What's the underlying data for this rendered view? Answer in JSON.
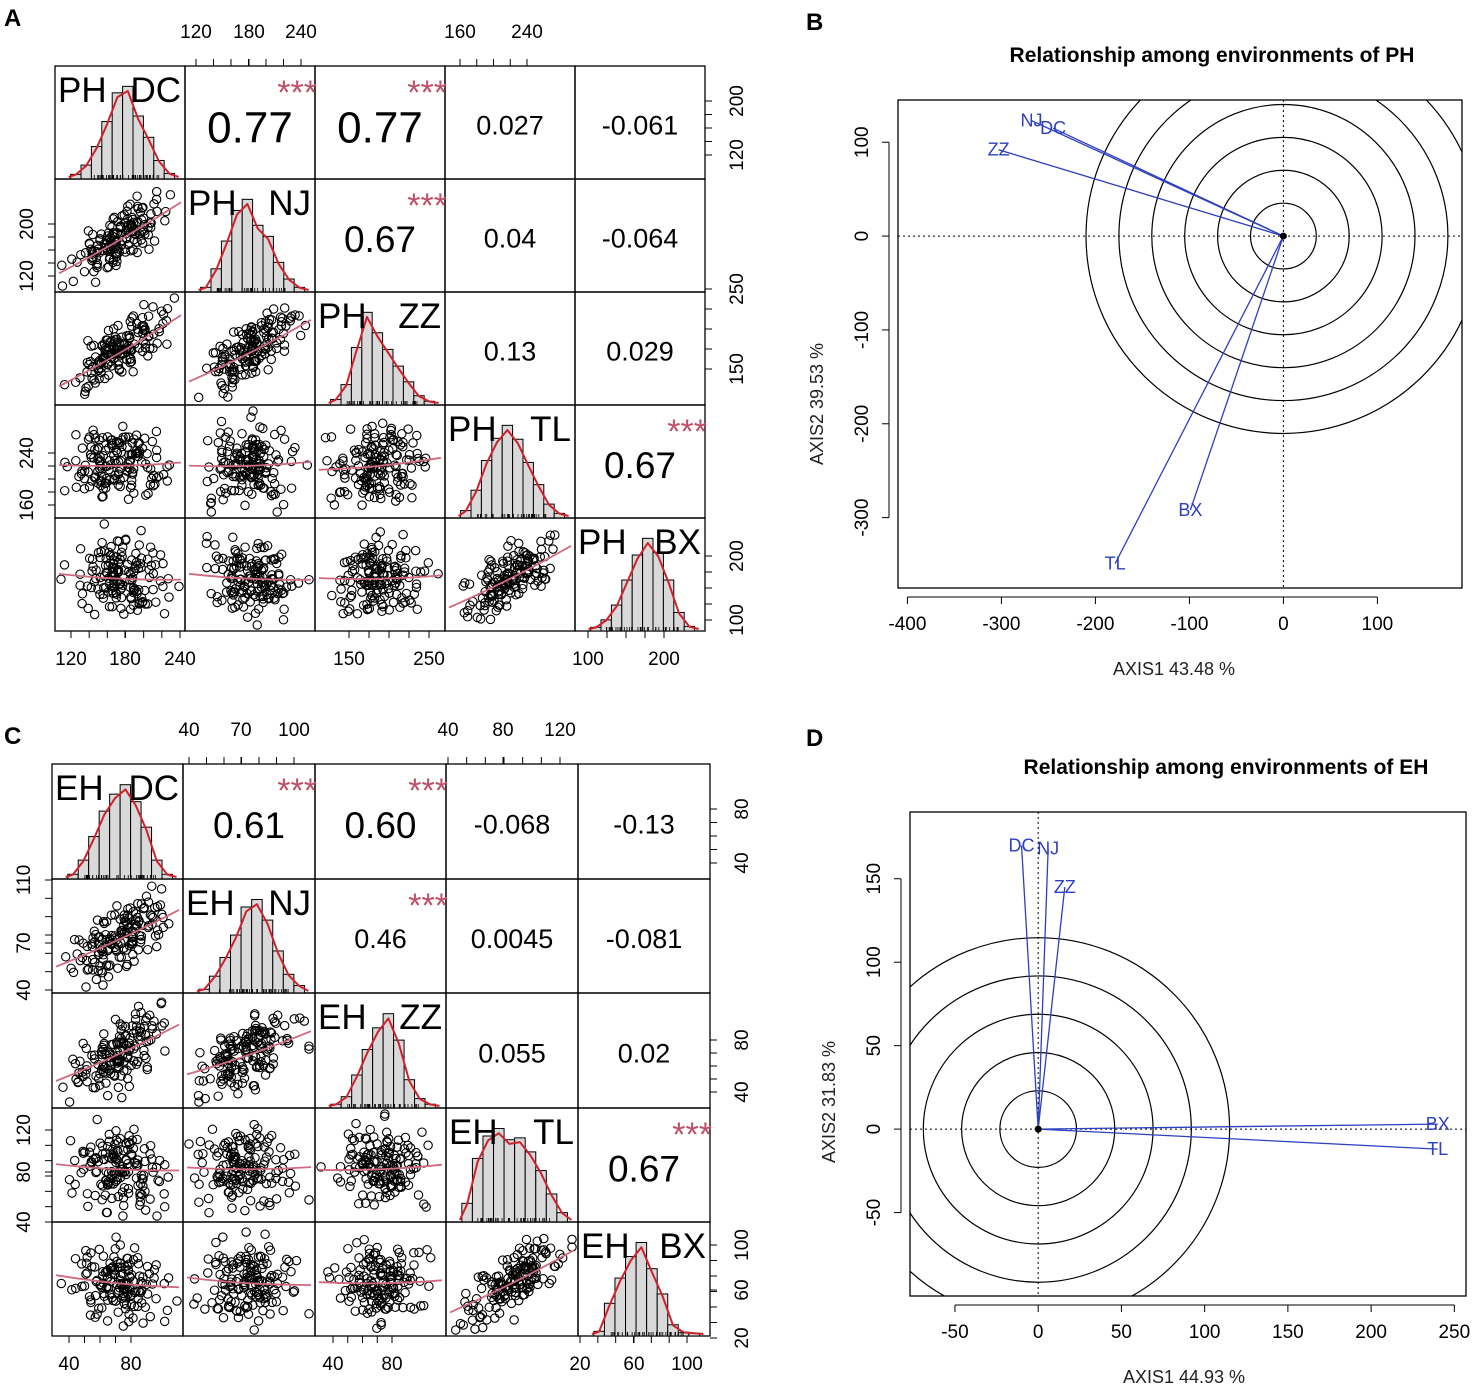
{
  "panel_labels": {
    "a": "A",
    "b": "B",
    "c": "C",
    "d": "D"
  },
  "chart_data": [
    {
      "panel": "A",
      "type": "scatter-matrix",
      "variables": [
        "PH_DC",
        "PH_NJ",
        "PH_ZZ",
        "PH_TL",
        "PH_BX"
      ],
      "variable_labels": [
        [
          "PH",
          "DC"
        ],
        [
          "PH",
          "NJ"
        ],
        [
          "PH",
          "ZZ"
        ],
        [
          "PH",
          "TL"
        ],
        [
          "PH",
          "BX"
        ]
      ],
      "correlations": [
        {
          "row": 0,
          "col": 1,
          "text": "0.77",
          "stars": "***",
          "size": "large"
        },
        {
          "row": 0,
          "col": 2,
          "text": "0.77",
          "stars": "***",
          "size": "large"
        },
        {
          "row": 0,
          "col": 3,
          "text": "0.027",
          "stars": "",
          "size": "small"
        },
        {
          "row": 0,
          "col": 4,
          "text": "-0.061",
          "stars": "",
          "size": "small"
        },
        {
          "row": 1,
          "col": 2,
          "text": "0.67",
          "stars": "***",
          "size": "medium"
        },
        {
          "row": 1,
          "col": 3,
          "text": "0.04",
          "stars": "",
          "size": "small"
        },
        {
          "row": 1,
          "col": 4,
          "text": "-0.064",
          "stars": "",
          "size": "small"
        },
        {
          "row": 2,
          "col": 3,
          "text": "0.13",
          "stars": "",
          "size": "small"
        },
        {
          "row": 2,
          "col": 4,
          "text": "0.029",
          "stars": "",
          "size": "small"
        },
        {
          "row": 3,
          "col": 4,
          "text": "0.67",
          "stars": "***",
          "size": "medium"
        }
      ],
      "ticks_top": [
        [
          "120",
          "180",
          "240"
        ],
        [
          "160",
          "240"
        ]
      ],
      "ticks_right": [
        [
          "200",
          "120"
        ],
        [
          "250",
          "150"
        ],
        [
          "200",
          "100"
        ]
      ],
      "ticks_left": [
        [
          "200",
          "120"
        ],
        [
          "240",
          "160"
        ]
      ],
      "ticks_bottom": [
        [
          "120",
          "180",
          "240"
        ],
        [
          "150",
          "250"
        ],
        [
          "100",
          "200"
        ]
      ]
    },
    {
      "panel": "B",
      "type": "biplot",
      "title": "Relationship among environments of  PH",
      "xlabel": "AXIS1 43.48 %",
      "ylabel": "AXIS2 39.53 %",
      "xlim": [
        -410,
        190
      ],
      "ylim": [
        -375,
        145
      ],
      "xticks": [
        -400,
        -300,
        -200,
        -100,
        0,
        100
      ],
      "yticks": [
        100,
        0,
        -100,
        -200,
        -300
      ],
      "xtick_labels": [
        "-400",
        "-300",
        "-200",
        "-100",
        "0",
        "100"
      ],
      "ytick_labels": [
        "100",
        "0",
        "-100",
        "-200",
        "-300"
      ],
      "circle_center": [
        0,
        0
      ],
      "circle_radii": [
        35,
        70,
        105,
        140,
        175,
        210
      ],
      "vectors": [
        {
          "name": "NJ",
          "x": -268,
          "y": 123
        },
        {
          "name": "DC",
          "x": -245,
          "y": 115
        },
        {
          "name": "ZZ",
          "x": -303,
          "y": 92
        },
        {
          "name": "BX",
          "x": -99,
          "y": -292
        },
        {
          "name": "TL",
          "x": -179,
          "y": -349
        }
      ]
    },
    {
      "panel": "C",
      "type": "scatter-matrix",
      "variables": [
        "EH_DC",
        "EH_NJ",
        "EH_ZZ",
        "EH_TL",
        "EH_BX"
      ],
      "variable_labels": [
        [
          "EH",
          "DC"
        ],
        [
          "EH",
          "NJ"
        ],
        [
          "EH",
          "ZZ"
        ],
        [
          "EH",
          "TL"
        ],
        [
          "EH",
          "BX"
        ]
      ],
      "correlations": [
        {
          "row": 0,
          "col": 1,
          "text": "0.61",
          "stars": "***",
          "size": "medium"
        },
        {
          "row": 0,
          "col": 2,
          "text": "0.60",
          "stars": "***",
          "size": "medium"
        },
        {
          "row": 0,
          "col": 3,
          "text": "-0.068",
          "stars": "",
          "size": "small"
        },
        {
          "row": 0,
          "col": 4,
          "text": "-0.13",
          "stars": "",
          "size": "small"
        },
        {
          "row": 1,
          "col": 2,
          "text": "0.46",
          "stars": "***",
          "size": "small"
        },
        {
          "row": 1,
          "col": 3,
          "text": "0.0045",
          "stars": "",
          "size": "small"
        },
        {
          "row": 1,
          "col": 4,
          "text": "-0.081",
          "stars": "",
          "size": "small"
        },
        {
          "row": 2,
          "col": 3,
          "text": "0.055",
          "stars": "",
          "size": "small"
        },
        {
          "row": 2,
          "col": 4,
          "text": "0.02",
          "stars": "",
          "size": "small"
        },
        {
          "row": 3,
          "col": 4,
          "text": "0.67",
          "stars": "***",
          "size": "medium"
        }
      ],
      "ticks_top": [
        [
          "40",
          "70",
          "100"
        ],
        [
          "40",
          "80",
          "120"
        ]
      ],
      "ticks_right": [
        [
          "80",
          "40"
        ],
        [
          "80",
          "40"
        ],
        [
          "100",
          "60",
          "20"
        ]
      ],
      "ticks_left": [
        [
          "110",
          "70",
          "40"
        ],
        [
          "120",
          "80",
          "40"
        ]
      ],
      "ticks_bottom": [
        [
          "40",
          "80"
        ],
        [
          "40",
          "80"
        ],
        [
          "20",
          "60",
          "100"
        ]
      ]
    },
    {
      "panel": "D",
      "type": "biplot",
      "title": "Relationship among environments of  EH",
      "xlabel": "AXIS1 44.93 %",
      "ylabel": "AXIS2 31.83 %",
      "xlim": [
        -77,
        257
      ],
      "ylim": [
        -100,
        190
      ],
      "xticks": [
        -50,
        0,
        50,
        100,
        150,
        200,
        250
      ],
      "yticks": [
        150,
        100,
        50,
        0,
        -50
      ],
      "xtick_labels": [
        "-50",
        "0",
        "50",
        "100",
        "150",
        "200",
        "250"
      ],
      "ytick_labels": [
        "150",
        "100",
        "50",
        "0",
        "-50"
      ],
      "circle_center": [
        0,
        0
      ],
      "circle_radii": [
        23,
        46,
        69,
        92,
        115
      ],
      "vectors": [
        {
          "name": "DC",
          "x": -10,
          "y": 170
        },
        {
          "name": "NJ",
          "x": 6,
          "y": 168
        },
        {
          "name": "ZZ",
          "x": 16,
          "y": 145
        },
        {
          "name": "BX",
          "x": 240,
          "y": 3
        },
        {
          "name": "TL",
          "x": 240,
          "y": -12
        }
      ]
    }
  ]
}
